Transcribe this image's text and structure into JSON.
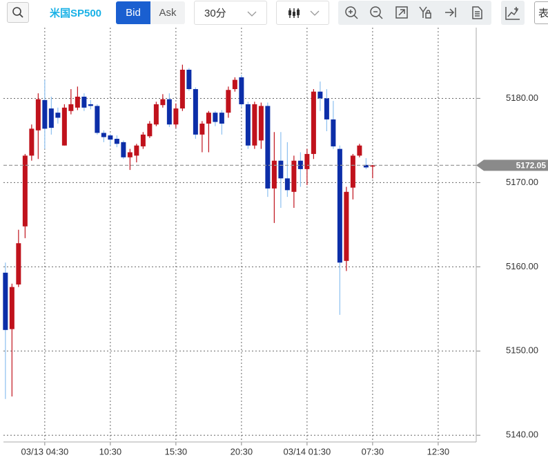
{
  "toolbar": {
    "symbol": "米国SP500",
    "bid": "Bid",
    "ask": "Ask",
    "interval": "30分",
    "more": "表"
  },
  "chart_data": {
    "type": "candlestick",
    "open": [
      5159.3,
      5152.6,
      5157.9,
      5164.8,
      5173.2,
      5176.2,
      5179.8,
      5178.8,
      5178.3,
      5174.4,
      5178.5,
      5178.9,
      5180.2,
      5179.3,
      5179.1,
      5175.9,
      5175.6,
      5175.2,
      5174.8,
      5173.0,
      5173.2,
      5174.3,
      5175.5,
      5176.9,
      5179.2,
      5179.9,
      5176.9,
      5178.8,
      5183.4,
      5181.1,
      5175.7,
      5177.0,
      5178.3,
      5178.3,
      5178.3,
      5181.1,
      5182.5,
      5179.3,
      5174.4,
      5175.0,
      5179.1,
      5169.3,
      5172.6,
      5170.5,
      5168.9,
      5172.6,
      5171.6,
      5173.4,
      5180.8,
      5180.0,
      5177.5,
      5174.0,
      5160.7,
      5169.4,
      5173.2,
      5172.1,
      5171.9
    ],
    "high": [
      5160.5,
      5158.0,
      5164.4,
      5173.4,
      5176.9,
      5180.6,
      5182.2,
      5180.2,
      5178.9,
      5179.3,
      5181.1,
      5181.4,
      5180.6,
      5179.8,
      5179.3,
      5176.2,
      5175.8,
      5175.6,
      5175.0,
      5174.0,
      5174.6,
      5176.0,
      5177.3,
      5179.6,
      5180.5,
      5180.6,
      5179.4,
      5184.0,
      5183.6,
      5181.3,
      5177.3,
      5178.5,
      5178.5,
      5178.6,
      5181.4,
      5182.5,
      5182.8,
      5179.6,
      5179.6,
      5179.5,
      5179.5,
      5176.0,
      5176.0,
      5174.8,
      5173.2,
      5173.6,
      5174.0,
      5181.1,
      5182.0,
      5181.1,
      5179.7,
      5174.4,
      5169.5,
      5173.4,
      5174.6,
      5172.9,
      5172.1
    ],
    "low": [
      5144.3,
      5144.6,
      5157.6,
      5163.4,
      5172.6,
      5172.8,
      5174.0,
      5175.7,
      5177.0,
      5174.4,
      5178.1,
      5178.6,
      5178.5,
      5178.7,
      5175.7,
      5174.8,
      5174.4,
      5174.2,
      5172.8,
      5171.5,
      5172.4,
      5174.0,
      5175.3,
      5176.7,
      5178.9,
      5176.6,
      5176.5,
      5178.5,
      5180.9,
      5175.2,
      5173.6,
      5173.6,
      5176.7,
      5175.7,
      5177.7,
      5180.8,
      5178.9,
      5174.0,
      5174.0,
      5174.0,
      5168.3,
      5165.2,
      5167.0,
      5168.3,
      5167.0,
      5169.5,
      5169.7,
      5172.8,
      5178.5,
      5176.1,
      5174.0,
      5154.3,
      5159.5,
      5168.0,
      5173.0,
      5171.6,
      5170.5
    ],
    "close": [
      5152.5,
      5157.6,
      5162.8,
      5173.2,
      5176.4,
      5179.9,
      5176.4,
      5176.5,
      5177.7,
      5178.9,
      5179.3,
      5180.2,
      5178.9,
      5179.1,
      5175.9,
      5175.4,
      5175.1,
      5174.6,
      5173.0,
      5173.6,
      5174.4,
      5175.7,
      5177.0,
      5179.3,
      5179.9,
      5176.9,
      5178.8,
      5183.4,
      5181.1,
      5175.7,
      5177.0,
      5178.3,
      5177.2,
      5177.0,
      5181.0,
      5182.2,
      5179.3,
      5174.4,
      5179.3,
      5179.1,
      5169.3,
      5172.6,
      5170.5,
      5169.1,
      5172.6,
      5171.6,
      5173.4,
      5180.8,
      5180.0,
      5177.5,
      5174.3,
      5160.5,
      5168.9,
      5173.2,
      5174.4,
      5171.8,
      5172.05
    ],
    "up_color": "#c0121c",
    "down_color": "#0c2ea8",
    "down_wick_color": "#8cc0f0",
    "last_price": 5172.05,
    "ylim": [
      5139.2,
      5188.4
    ],
    "yticks": [
      {
        "value": 5140,
        "label": "5140.00"
      },
      {
        "value": 5150,
        "label": "5150.00"
      },
      {
        "value": 5160,
        "label": "5160.00"
      },
      {
        "value": 5170,
        "label": "5170.00"
      },
      {
        "value": 5180,
        "label": "5180.00"
      }
    ],
    "xlim": [
      -0.3,
      71.8
    ],
    "xticks": [
      {
        "value": 6,
        "label": "03/13 04:30"
      },
      {
        "value": 16,
        "label": "10:30"
      },
      {
        "value": 26,
        "label": "15:30"
      },
      {
        "value": 36,
        "label": "20:30"
      },
      {
        "value": 46,
        "label": "03/14 01:30"
      },
      {
        "value": 56,
        "label": "07:30"
      },
      {
        "value": 66,
        "label": "12:30"
      }
    ],
    "grid": true
  }
}
